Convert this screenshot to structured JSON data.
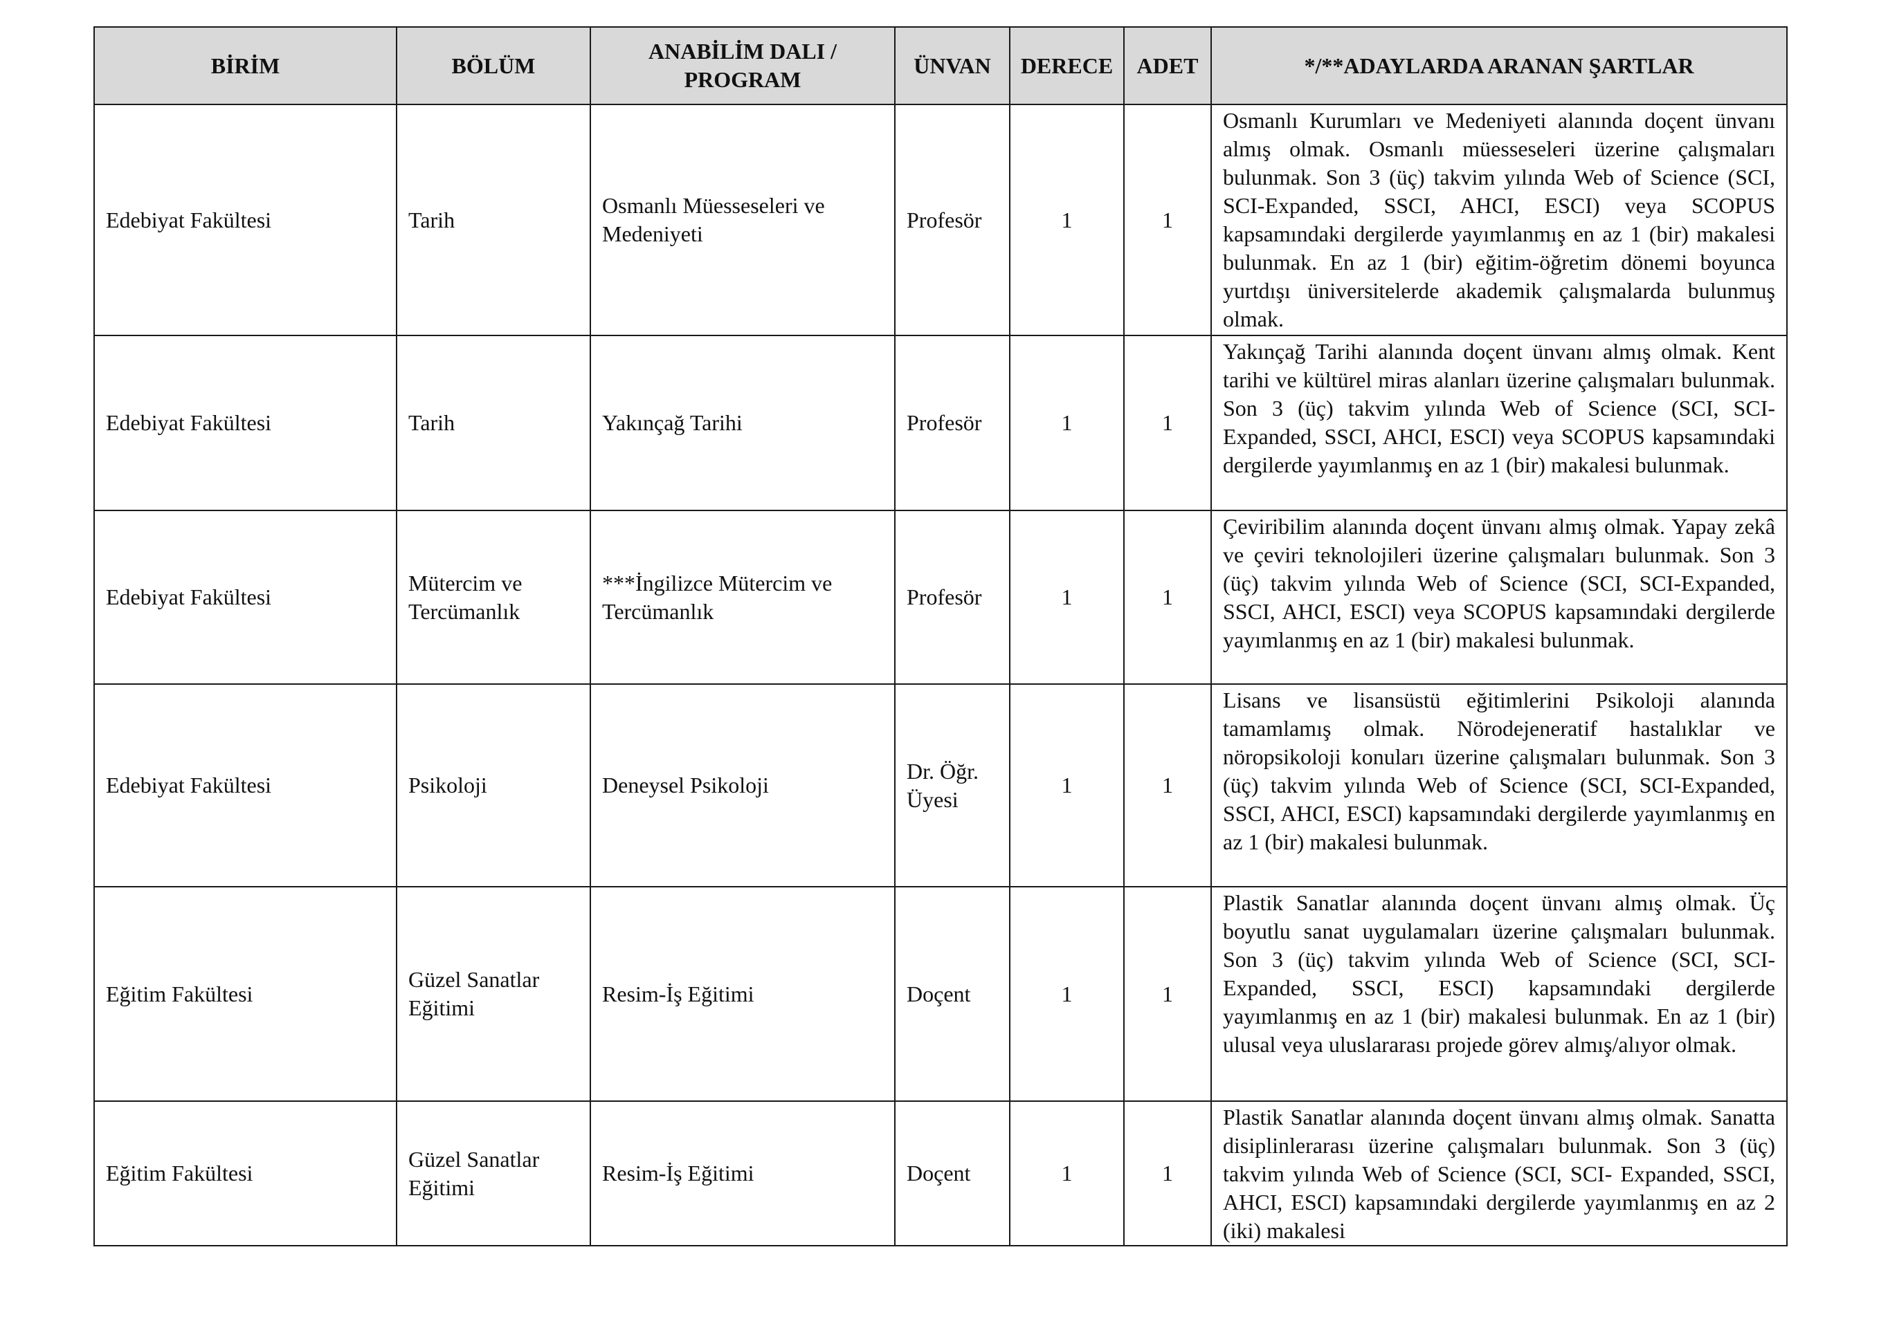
{
  "headers": {
    "birim": "BİRİM",
    "bolum": "BÖLÜM",
    "anabilim": "ANABİLİM DALI / PROGRAM",
    "unvan": "ÜNVAN",
    "derece": "DERECE",
    "adet": "ADET",
    "sartlar": "*/**ADAYLARDA ARANAN ŞARTLAR"
  },
  "header_bg": "#d9d9d9",
  "rows": [
    {
      "birim": "Edebiyat Fakültesi",
      "bolum": "Tarih",
      "anabilim": "Osmanlı Müesseseleri ve Medeniyeti",
      "unvan": "Profesör",
      "derece": "1",
      "adet": "1",
      "sartlar": "Osmanlı Kurumları ve Medeniyeti alanında doçent ünvanı almış olmak. Osmanlı müesseseleri üzerine çalışmaları bulunmak. Son 3 (üç) takvim yılında Web of Science (SCI, SCI-Expanded, SSCI, AHCI, ESCI) veya SCOPUS kapsamındaki dergilerde yayımlanmış en az 1 (bir) makalesi bulunmak.  En az 1 (bir) eğitim-öğretim dönemi boyunca yurtdışı üniversitelerde akademik çalışmalarda bulunmuş olmak."
    },
    {
      "birim": "Edebiyat Fakültesi",
      "bolum": "Tarih",
      "anabilim": "Yakınçağ Tarihi",
      "unvan": "Profesör",
      "derece": "1",
      "adet": "1",
      "sartlar": "Yakınçağ Tarihi alanında doçent ünvanı almış olmak. Kent tarihi ve kültürel miras alanları üzerine çalışmaları bulunmak. Son 3 (üç) takvim yılında Web of Science (SCI, SCI-Expanded, SSCI, AHCI, ESCI) veya SCOPUS kapsamındaki dergilerde yayımlanmış en az 1 (bir) makalesi bulunmak."
    },
    {
      "birim": "Edebiyat Fakültesi",
      "bolum": "Mütercim ve Tercümanlık",
      "anabilim": "***İngilizce Mütercim ve Tercümanlık",
      "unvan": "Profesör",
      "derece": "1",
      "adet": "1",
      "sartlar": "Çeviribilim alanında doçent ünvanı almış olmak. Yapay zekâ ve çeviri teknolojileri üzerine çalışmaları bulunmak. Son 3 (üç) takvim yılında Web of Science (SCI, SCI-Expanded, SSCI, AHCI, ESCI) veya SCOPUS kapsamındaki dergilerde yayımlanmış en az 1 (bir) makalesi bulunmak."
    },
    {
      "birim": "Edebiyat Fakültesi",
      "bolum": "Psikoloji",
      "anabilim": "Deneysel Psikoloji",
      "unvan": "Dr. Öğr. Üyesi",
      "derece": "1",
      "adet": "1",
      "sartlar": "Lisans ve lisansüstü eğitimlerini Psikoloji alanında tamamlamış olmak. Nörodejeneratif hastalıklar ve nöropsikoloji konuları üzerine çalışmaları bulunmak. Son 3 (üç) takvim yılında Web of Science (SCI, SCI-Expanded, SSCI, AHCI, ESCI) kapsamındaki dergilerde yayımlanmış en az 1 (bir) makalesi bulunmak."
    },
    {
      "birim": "Eğitim Fakültesi",
      "bolum": "Güzel Sanatlar Eğitimi",
      "anabilim": "Resim-İş Eğitimi",
      "unvan": "Doçent",
      "derece": "1",
      "adet": "1",
      "sartlar": "Plastik Sanatlar alanında doçent ünvanı almış olmak. Üç boyutlu sanat uygulamaları üzerine çalışmaları bulunmak.  Son 3 (üç) takvim yılında Web of Science (SCI, SCI-Expanded, SSCI, ESCI) kapsamındaki dergilerde yayımlanmış en az 1 (bir) makalesi bulunmak. En az 1 (bir) ulusal veya uluslararası projede görev almış/alıyor olmak."
    },
    {
      "birim": "Eğitim Fakültesi",
      "bolum": "Güzel Sanatlar Eğitimi",
      "anabilim": "Resim-İş Eğitimi",
      "unvan": "Doçent",
      "derece": "1",
      "adet": "1",
      "sartlar": "Plastik Sanatlar alanında doçent ünvanı almış olmak. Sanatta disiplinlerarası üzerine çalışmaları bulunmak.  Son 3 (üç) takvim yılında Web of Science (SCI, SCI- Expanded, SSCI, AHCI, ESCI) kapsamındaki dergilerde yayımlanmış en az 2 (iki) makalesi"
    }
  ]
}
